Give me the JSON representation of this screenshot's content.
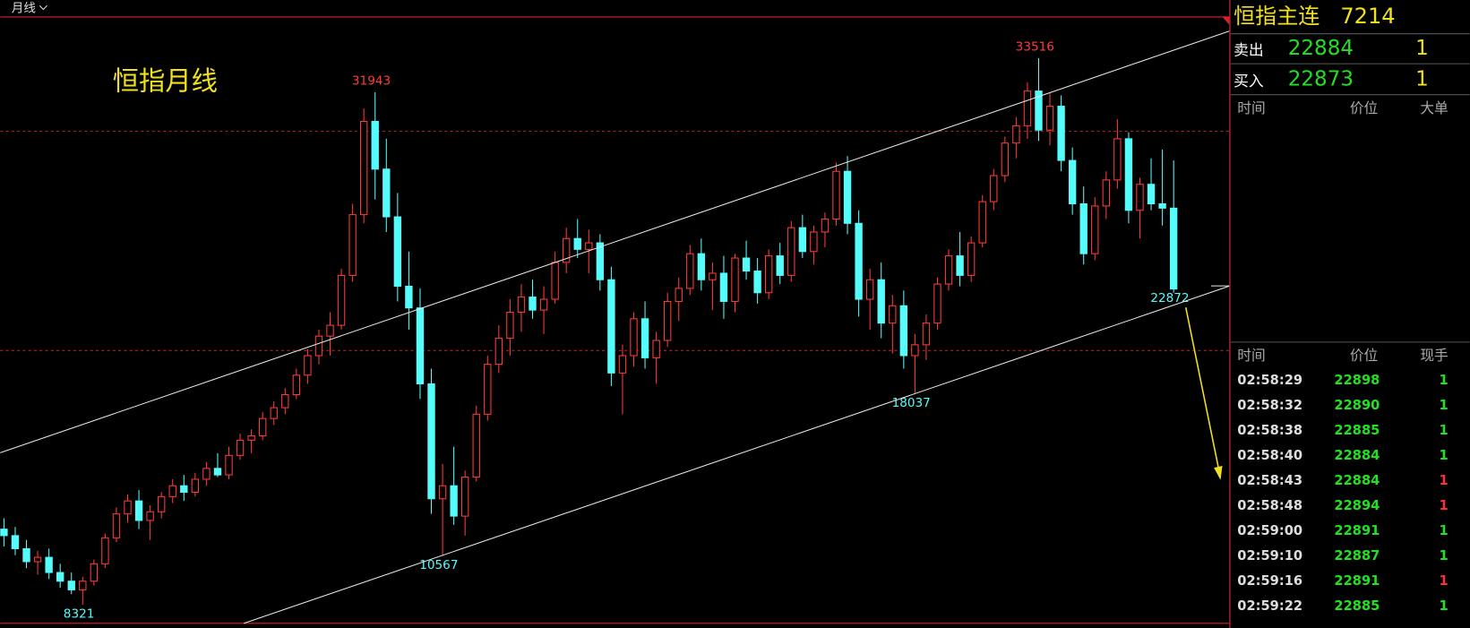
{
  "header": {
    "period": "月线"
  },
  "chart_data": {
    "type": "candlestick",
    "title": "恒指月线",
    "ylim": [
      7457,
      35420
    ],
    "up_color": "#ff3b3b",
    "down_color": "#54fcfc",
    "candles": [
      [
        11800,
        12300,
        11000,
        11500
      ],
      [
        11500,
        11900,
        10600,
        10900
      ],
      [
        10900,
        11300,
        10000,
        10300
      ],
      [
        10300,
        10800,
        9700,
        10500
      ],
      [
        10500,
        10900,
        9500,
        9800
      ],
      [
        9800,
        10200,
        9100,
        9400
      ],
      [
        9400,
        9800,
        8800,
        9000
      ],
      [
        9000,
        9600,
        8321,
        9400
      ],
      [
        9400,
        10400,
        9200,
        10200
      ],
      [
        10200,
        11600,
        10000,
        11400
      ],
      [
        11400,
        12800,
        11200,
        12500
      ],
      [
        12500,
        13400,
        12100,
        13100
      ],
      [
        13100,
        13600,
        11800,
        12200
      ],
      [
        12200,
        12900,
        11300,
        12600
      ],
      [
        12600,
        13500,
        12300,
        13300
      ],
      [
        13300,
        14100,
        13000,
        13800
      ],
      [
        13800,
        14300,
        13100,
        13500
      ],
      [
        13500,
        14400,
        13300,
        14100
      ],
      [
        14100,
        14900,
        13800,
        14600
      ],
      [
        14600,
        15300,
        14200,
        14300
      ],
      [
        14300,
        15600,
        14100,
        15200
      ],
      [
        15200,
        16200,
        15000,
        15900
      ],
      [
        15900,
        16400,
        15300,
        16100
      ],
      [
        16100,
        17200,
        15900,
        16900
      ],
      [
        16900,
        17700,
        16600,
        17400
      ],
      [
        17400,
        18300,
        17100,
        18000
      ],
      [
        18000,
        19200,
        17800,
        18900
      ],
      [
        18900,
        20100,
        18500,
        19800
      ],
      [
        19800,
        21000,
        19400,
        20700
      ],
      [
        20700,
        21800,
        19800,
        21200
      ],
      [
        21200,
        23800,
        21000,
        23500
      ],
      [
        23500,
        26800,
        23200,
        26300
      ],
      [
        26300,
        31200,
        25900,
        30600
      ],
      [
        30600,
        31943,
        27000,
        28400
      ],
      [
        28400,
        29800,
        25500,
        26200
      ],
      [
        26200,
        27300,
        22300,
        23000
      ],
      [
        23000,
        24600,
        21000,
        22000
      ],
      [
        22000,
        22900,
        17800,
        18500
      ],
      [
        18500,
        19200,
        12500,
        13200
      ],
      [
        13200,
        14800,
        10567,
        13800
      ],
      [
        13800,
        15600,
        12000,
        12400
      ],
      [
        12400,
        14500,
        11500,
        14200
      ],
      [
        14200,
        17500,
        14000,
        17100
      ],
      [
        17100,
        19800,
        16800,
        19400
      ],
      [
        19400,
        21200,
        19000,
        20600
      ],
      [
        20600,
        22400,
        19800,
        21800
      ],
      [
        21800,
        23100,
        20900,
        22500
      ],
      [
        22500,
        23300,
        21500,
        21900
      ],
      [
        21900,
        23000,
        20800,
        22400
      ],
      [
        22400,
        24600,
        22200,
        24100
      ],
      [
        24100,
        25700,
        23600,
        25200
      ],
      [
        25200,
        26100,
        24300,
        24700
      ],
      [
        24700,
        25600,
        23600,
        25000
      ],
      [
        25000,
        25400,
        22800,
        23300
      ],
      [
        23300,
        23900,
        18400,
        19000
      ],
      [
        19000,
        20300,
        17100,
        19800
      ],
      [
        19800,
        21800,
        19300,
        21500
      ],
      [
        21500,
        22300,
        19200,
        19700
      ],
      [
        19700,
        20900,
        18500,
        20500
      ],
      [
        20500,
        22700,
        20200,
        22300
      ],
      [
        22300,
        23400,
        21400,
        22900
      ],
      [
        22900,
        24900,
        22600,
        24500
      ],
      [
        24500,
        25200,
        22800,
        23300
      ],
      [
        23300,
        24100,
        21900,
        23600
      ],
      [
        23600,
        24400,
        21500,
        22300
      ],
      [
        22300,
        24500,
        21800,
        24300
      ],
      [
        24300,
        25100,
        23300,
        23700
      ],
      [
        23700,
        24300,
        22200,
        22700
      ],
      [
        22700,
        24700,
        22400,
        24400
      ],
      [
        24400,
        25000,
        23100,
        23500
      ],
      [
        23500,
        26000,
        23200,
        25700
      ],
      [
        25700,
        26300,
        24300,
        24600
      ],
      [
        24600,
        25800,
        24000,
        25500
      ],
      [
        25500,
        26400,
        24800,
        26100
      ],
      [
        26100,
        28700,
        25800,
        28300
      ],
      [
        28300,
        29000,
        25400,
        25900
      ],
      [
        25900,
        26500,
        21600,
        22400
      ],
      [
        22400,
        23800,
        21000,
        23300
      ],
      [
        23300,
        24100,
        20600,
        21300
      ],
      [
        21300,
        22600,
        19900,
        22100
      ],
      [
        22100,
        22800,
        19200,
        19800
      ],
      [
        19800,
        20800,
        18037,
        20300
      ],
      [
        20300,
        21700,
        19600,
        21300
      ],
      [
        21300,
        23400,
        21000,
        23100
      ],
      [
        23100,
        24700,
        22800,
        24400
      ],
      [
        24400,
        25500,
        23000,
        23500
      ],
      [
        23500,
        25300,
        23200,
        25000
      ],
      [
        25000,
        27200,
        24800,
        26900
      ],
      [
        26900,
        28400,
        26500,
        28100
      ],
      [
        28100,
        29900,
        27800,
        29600
      ],
      [
        29600,
        30800,
        28900,
        30400
      ],
      [
        30400,
        32400,
        29800,
        32000
      ],
      [
        32000,
        33516,
        29700,
        30200
      ],
      [
        30200,
        31900,
        29500,
        31300
      ],
      [
        31300,
        31800,
        28300,
        28800
      ],
      [
        28800,
        29400,
        26300,
        26800
      ],
      [
        26800,
        27600,
        24000,
        24500
      ],
      [
        24500,
        27100,
        24200,
        26700
      ],
      [
        26700,
        28300,
        26100,
        27900
      ],
      [
        27900,
        30700,
        27500,
        29800
      ],
      [
        29800,
        30100,
        25900,
        26500
      ],
      [
        26500,
        28000,
        25200,
        27700
      ],
      [
        27700,
        28900,
        26500,
        26800
      ],
      [
        26800,
        29300,
        25800,
        26600
      ],
      [
        26600,
        28800,
        22700,
        22872
      ]
    ]
  },
  "quote": {
    "symbol": "恒指主连",
    "volume": 7214,
    "sell": {
      "label": "卖出",
      "price": 22884,
      "qty": 1
    },
    "buy": {
      "label": "买入",
      "price": 22873,
      "qty": 1
    },
    "big_orders": {
      "headers": [
        "时间",
        "价位",
        "大单"
      ]
    },
    "ticks": {
      "headers": [
        "时间",
        "价位",
        "现手"
      ],
      "rows": [
        {
          "time": "02:58:29",
          "price": 22898,
          "qty": 1,
          "color": "#22e022"
        },
        {
          "time": "02:58:32",
          "price": 22890,
          "qty": 1,
          "color": "#22e022"
        },
        {
          "time": "02:58:38",
          "price": 22885,
          "qty": 1,
          "color": "#22e022"
        },
        {
          "time": "02:58:40",
          "price": 22884,
          "qty": 1,
          "color": "#22e022"
        },
        {
          "time": "02:58:43",
          "price": 22884,
          "qty": 1,
          "color": "#ff3030"
        },
        {
          "time": "02:58:48",
          "price": 22894,
          "qty": 1,
          "color": "#ff3030"
        },
        {
          "time": "02:59:00",
          "price": 22891,
          "qty": 1,
          "color": "#22e022"
        },
        {
          "time": "02:59:10",
          "price": 22887,
          "qty": 1,
          "color": "#22e022"
        },
        {
          "time": "02:59:16",
          "price": 22891,
          "qty": 1,
          "color": "#ff3030"
        },
        {
          "time": "02:59:22",
          "price": 22885,
          "qty": 1,
          "color": "#22e022"
        }
      ]
    }
  }
}
